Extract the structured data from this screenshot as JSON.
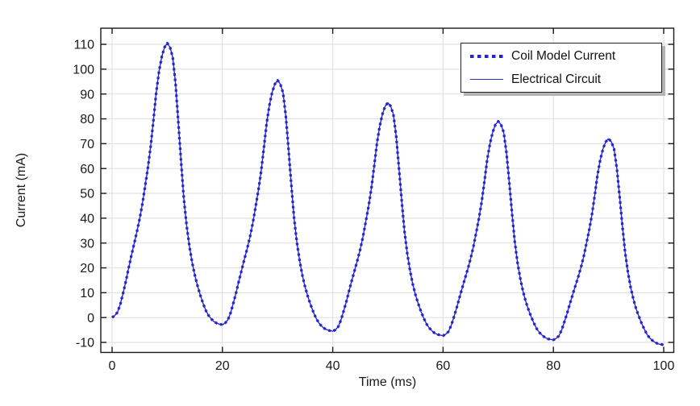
{
  "window": {
    "background": "#ffffff"
  },
  "colors": {
    "series_blue_dotted": "#2525cf",
    "series_blue_solid": "#2a2acc",
    "grid": "#e2e2e2",
    "frame": "#1a1a1a",
    "tick": "#1a1a1a",
    "text": "#1a1a1a",
    "legend_border": "#222222",
    "legend_background": "#ffffff",
    "legend_shadow": "#b4b4b4"
  },
  "legend": {
    "position": "top-right",
    "entries": [
      {
        "swatch": "dotted-line-swatch",
        "label": "Coil Model Current"
      },
      {
        "swatch": "solid-line-swatch",
        "label": "Electrical Circuit"
      }
    ]
  },
  "chart_data": {
    "type": "line",
    "title": "",
    "xlabel": "Time (ms)",
    "ylabel": "Current (mA)",
    "xlim": [
      -2,
      102
    ],
    "ylim": [
      -14,
      116.5
    ],
    "xticks": [
      0,
      20,
      40,
      60,
      80,
      100
    ],
    "yticks": [
      -10,
      0,
      10,
      20,
      30,
      40,
      50,
      60,
      70,
      80,
      90,
      100,
      110
    ],
    "grid": true,
    "legend_position": "top-right",
    "x_start": 0,
    "x_step": 0.5,
    "n_points": 201,
    "peaks": {
      "t": [
        10,
        30,
        50,
        70,
        90
      ],
      "i": [
        110.5,
        95.5,
        86.5,
        79,
        72
      ]
    },
    "minima": {
      "t": [
        20,
        40,
        60,
        80,
        100
      ],
      "i": [
        -2.9,
        -5.5,
        -7.3,
        -9,
        -11
      ]
    },
    "series": [
      {
        "name": "Coil Model Current",
        "style": "dotted",
        "color": "#2525cf",
        "values": [
          0,
          0.8,
          2.2,
          5.5,
          9.9,
          14.7,
          19.9,
          24.9,
          29.8,
          34.6,
          39.8,
          45.9,
          53,
          60.6,
          69.1,
          79.6,
          90.6,
          98.9,
          105,
          108.8,
          110.5,
          108.8,
          104.8,
          94.1,
          78.7,
          62.9,
          48.1,
          37.4,
          28.9,
          22.3,
          17,
          12.7,
          9,
          5.6,
          2.8,
          0.8,
          -0.6,
          -1.7,
          -2.3,
          -2.7,
          -2.9,
          -2.2,
          -0.9,
          2,
          6,
          10.2,
          14.8,
          19.2,
          23.7,
          27.9,
          32.5,
          37.9,
          44.3,
          51,
          58.6,
          68,
          77.8,
          85.2,
          90.6,
          94,
          95.5,
          94,
          90.5,
          80.9,
          67.2,
          53.1,
          39.9,
          30.4,
          22.8,
          16.9,
          12.2,
          8.4,
          5.1,
          2.1,
          -0.4,
          -2.2,
          -3.5,
          -4.4,
          -5,
          -5.3,
          -5.5,
          -4.9,
          -3.7,
          -0.9,
          2.8,
          6.7,
          11.1,
          15.2,
          19.3,
          23.3,
          27.6,
          32.7,
          38.7,
          44.9,
          52,
          60.7,
          69.9,
          76.8,
          81.9,
          85.1,
          86.5,
          85.1,
          81.8,
          72.9,
          60.2,
          47.1,
          34.9,
          26,
          19,
          13.5,
          9.1,
          5.6,
          2.5,
          -0.3,
          -2.6,
          -4.2,
          -5.4,
          -6.3,
          -6.8,
          -7.1,
          -7.3,
          -6.7,
          -5.6,
          -3,
          0.5,
          4.2,
          8.2,
          12.1,
          16,
          19.7,
          23.8,
          28.5,
          34.1,
          40,
          46.6,
          54.8,
          63.5,
          69.9,
          74.7,
          77.7,
          79,
          77.7,
          74.6,
          66.2,
          54.4,
          42,
          30.6,
          22.2,
          15.6,
          10.5,
          6.4,
          3.1,
          0.2,
          -2.4,
          -4.6,
          -6.1,
          -7.2,
          -8,
          -8.6,
          -8.8,
          -9,
          -8.4,
          -7.4,
          -5,
          -1.7,
          1.8,
          5.6,
          9.2,
          12.9,
          16.4,
          20.2,
          24.6,
          29.9,
          35.4,
          41.6,
          49.3,
          57.4,
          63.5,
          68,
          70.8,
          72,
          70.8,
          67.9,
          60,
          48.8,
          37.1,
          26.4,
          18.5,
          12.2,
          7.4,
          3.5,
          0.5,
          -2.3,
          -4.8,
          -6.9,
          -8.3,
          -9.3,
          -10.1,
          -10.6,
          -10.8,
          -11
        ]
      },
      {
        "name": "Electrical Circuit",
        "style": "solid",
        "color": "#2a2acc",
        "values": [
          0,
          0.8,
          2.2,
          5.5,
          9.9,
          14.7,
          19.9,
          24.9,
          29.8,
          34.6,
          39.8,
          45.9,
          53,
          60.6,
          69.1,
          79.6,
          90.6,
          98.9,
          105,
          108.8,
          110.5,
          108.8,
          104.8,
          94.1,
          78.7,
          62.9,
          48.1,
          37.4,
          28.9,
          22.3,
          17,
          12.7,
          9,
          5.6,
          2.8,
          0.8,
          -0.6,
          -1.7,
          -2.3,
          -2.7,
          -2.9,
          -2.2,
          -0.9,
          2,
          6,
          10.2,
          14.8,
          19.2,
          23.7,
          27.9,
          32.5,
          37.9,
          44.3,
          51,
          58.6,
          68,
          77.8,
          85.2,
          90.6,
          94,
          95.5,
          94,
          90.5,
          80.9,
          67.2,
          53.1,
          39.9,
          30.4,
          22.8,
          16.9,
          12.2,
          8.4,
          5.1,
          2.1,
          -0.4,
          -2.2,
          -3.5,
          -4.4,
          -5,
          -5.3,
          -5.5,
          -4.9,
          -3.7,
          -0.9,
          2.8,
          6.7,
          11.1,
          15.2,
          19.3,
          23.3,
          27.6,
          32.7,
          38.7,
          44.9,
          52,
          60.7,
          69.9,
          76.8,
          81.9,
          85.1,
          86.5,
          85.1,
          81.8,
          72.9,
          60.2,
          47.1,
          34.9,
          26,
          19,
          13.5,
          9.1,
          5.6,
          2.5,
          -0.3,
          -2.6,
          -4.2,
          -5.4,
          -6.3,
          -6.8,
          -7.1,
          -7.3,
          -6.7,
          -5.6,
          -3,
          0.5,
          4.2,
          8.2,
          12.1,
          16,
          19.7,
          23.8,
          28.5,
          34.1,
          40,
          46.6,
          54.8,
          63.5,
          69.9,
          74.7,
          77.7,
          79,
          77.7,
          74.6,
          66.2,
          54.4,
          42,
          30.6,
          22.2,
          15.6,
          10.5,
          6.4,
          3.1,
          0.2,
          -2.4,
          -4.6,
          -6.1,
          -7.2,
          -8,
          -8.6,
          -8.8,
          -9,
          -8.4,
          -7.4,
          -5,
          -1.7,
          1.8,
          5.6,
          9.2,
          12.9,
          16.4,
          20.2,
          24.6,
          29.9,
          35.4,
          41.6,
          49.3,
          57.4,
          63.5,
          68,
          70.8,
          72,
          70.8,
          67.9,
          60,
          48.8,
          37.1,
          26.4,
          18.5,
          12.2,
          7.4,
          3.5,
          0.5,
          -2.3,
          -4.8,
          -6.9,
          -8.3,
          -9.3,
          -10.1,
          -10.6,
          -10.8,
          -11
        ]
      }
    ]
  }
}
